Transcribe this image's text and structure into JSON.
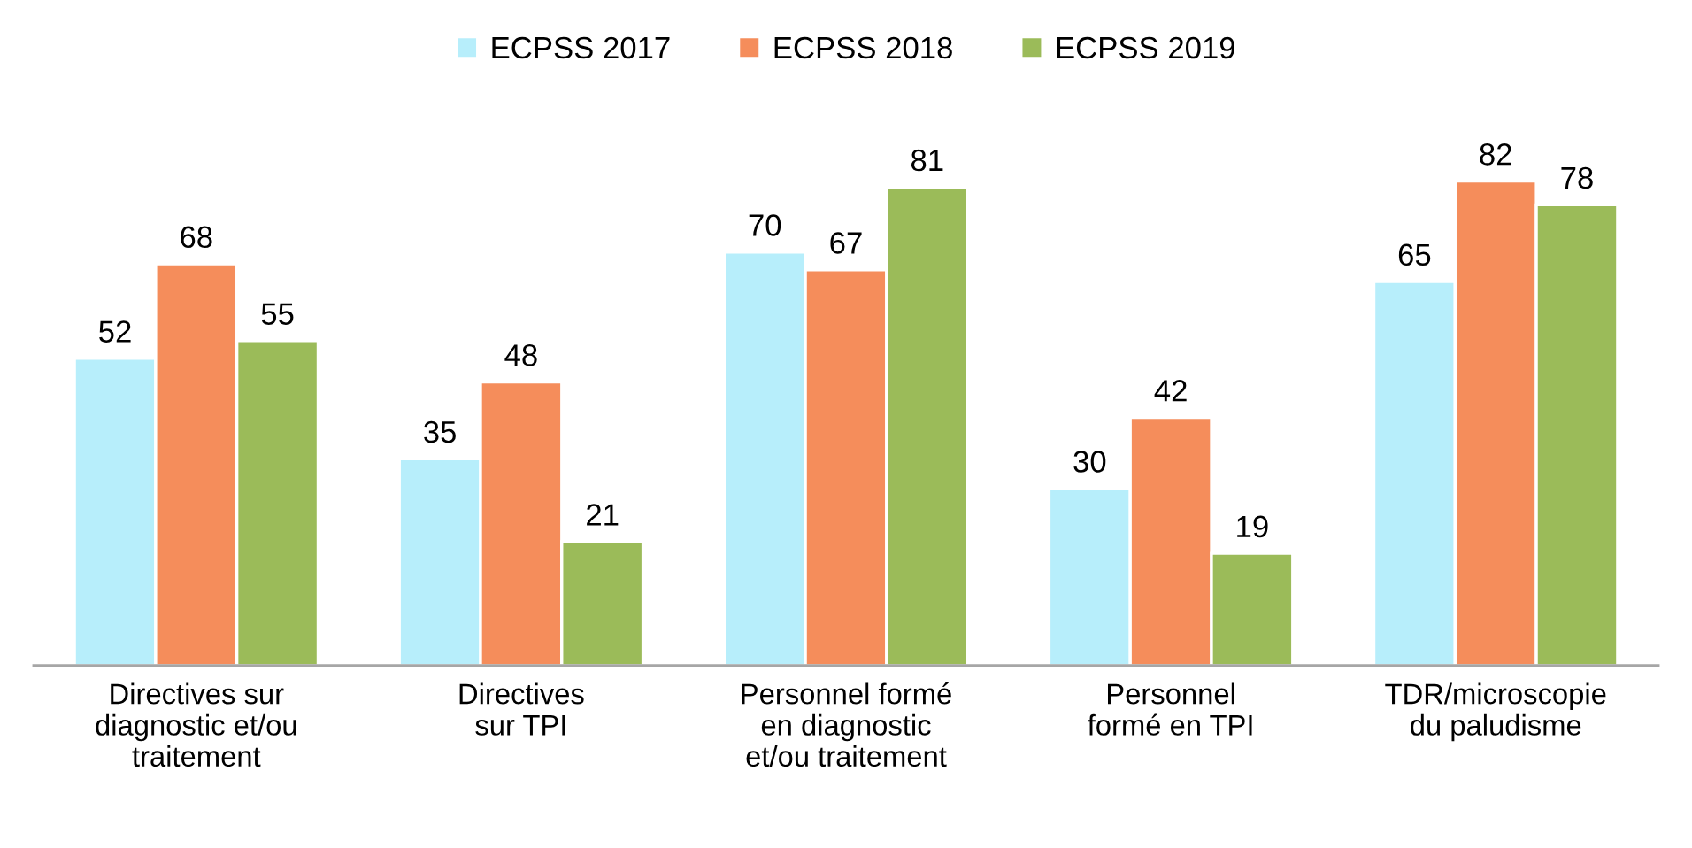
{
  "chart_data": {
    "type": "bar",
    "categories": [
      "Directives sur\ndiagnostic et/ou\ntraitement",
      "Directives\nsur TPI",
      "Personnel formé\nen diagnostic\net/ou traitement",
      "Personnel\nformé en TPI",
      "TDR/microscopie\ndu paludisme"
    ],
    "series": [
      {
        "name": "ECPSS 2017",
        "color": "#b7eefb",
        "values": [
          52,
          35,
          70,
          30,
          65
        ]
      },
      {
        "name": "ECPSS 2018",
        "color": "#f58d5b",
        "values": [
          68,
          48,
          67,
          42,
          82
        ]
      },
      {
        "name": "ECPSS 2019",
        "color": "#9bbb59",
        "values": [
          55,
          21,
          81,
          19,
          78
        ]
      }
    ],
    "data_labels": true,
    "legend": "top"
  }
}
